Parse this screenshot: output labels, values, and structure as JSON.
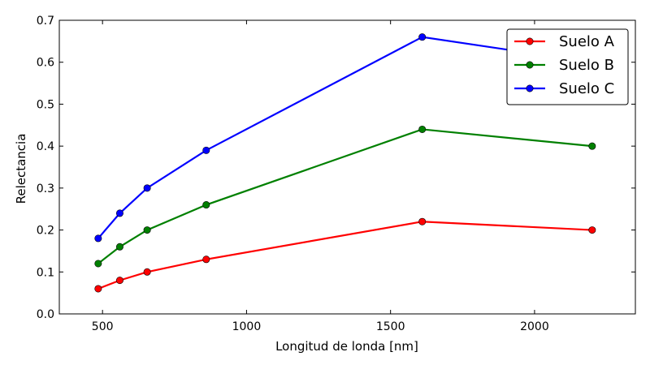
{
  "chart_data": {
    "type": "line",
    "title": "",
    "xlabel": "Longitud de londa [nm]",
    "ylabel": "Relectancia",
    "xlim": [
      350,
      2350
    ],
    "ylim": [
      0,
      0.7
    ],
    "xticks": [
      500,
      1000,
      1500,
      2000
    ],
    "xtick_labels": [
      "500",
      "1000",
      "1500",
      "2000"
    ],
    "yticks": [
      0,
      0.1,
      0.2,
      0.3,
      0.4,
      0.5,
      0.6,
      0.7
    ],
    "ytick_labels": [
      "0.0",
      "0.1",
      "0.2",
      "0.3",
      "0.4",
      "0.5",
      "0.6",
      "0.7"
    ],
    "grid": false,
    "legend_position": "top-right",
    "x": [
      485,
      560,
      655,
      860,
      1610,
      2200
    ],
    "series": [
      {
        "name": "Suelo A",
        "color": "#ff0000",
        "values": [
          0.06,
          0.08,
          0.1,
          0.13,
          0.22,
          0.2
        ]
      },
      {
        "name": "Suelo B",
        "color": "#008000",
        "values": [
          0.12,
          0.16,
          0.2,
          0.26,
          0.44,
          0.4
        ]
      },
      {
        "name": "Suelo C",
        "color": "#0000ff",
        "values": [
          0.18,
          0.24,
          0.3,
          0.39,
          0.66,
          0.6
        ]
      }
    ]
  }
}
